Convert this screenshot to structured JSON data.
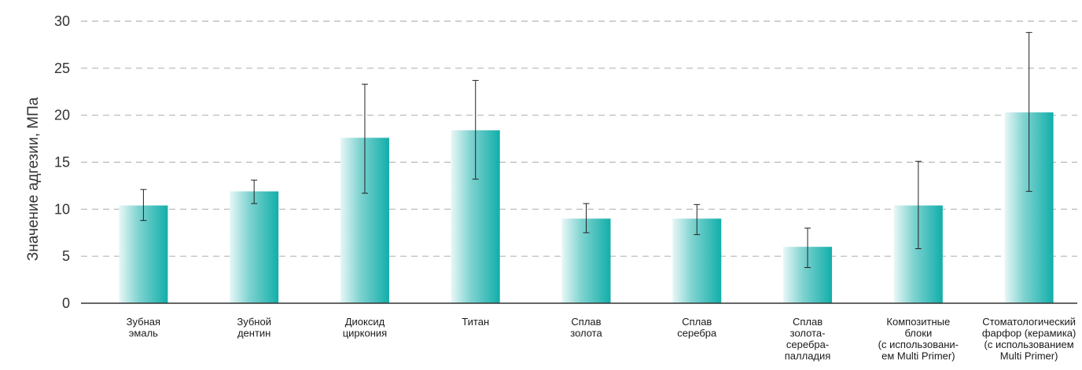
{
  "chart_data": {
    "type": "bar",
    "ylabel": "Значение адгезии, МПа",
    "ylim": [
      0,
      30
    ],
    "yticks": [
      0,
      5,
      10,
      15,
      20,
      25,
      30
    ],
    "grid": true,
    "categories": [
      [
        "Зубная",
        "эмаль"
      ],
      [
        "Зубной",
        "дентин"
      ],
      [
        "Диоксид",
        "циркония"
      ],
      [
        "Титан"
      ],
      [
        "Сплав",
        "золота"
      ],
      [
        "Сплав",
        "серебра"
      ],
      [
        "Сплав",
        "золота-",
        "серебра-",
        "палладия"
      ],
      [
        "Композитные",
        "блоки",
        "(с использовани-",
        "ем Multi Primer)"
      ],
      [
        "Стоматологический",
        "фарфор (керамика)",
        "(с использованием",
        "Multi Primer)"
      ]
    ],
    "values": [
      10.4,
      11.9,
      17.6,
      18.4,
      9.0,
      9.0,
      6.0,
      10.4,
      20.3
    ],
    "error_low": [
      8.8,
      10.6,
      11.7,
      13.2,
      7.5,
      7.3,
      3.8,
      5.8,
      11.9
    ],
    "error_high": [
      12.1,
      13.1,
      23.3,
      23.7,
      10.6,
      10.5,
      8.0,
      15.1,
      28.8
    ],
    "colors": {
      "bar_light": "#e8f7f7",
      "bar_mid": "#7fd3d0",
      "bar_dark": "#12aeaa",
      "grid": "#b5b5b5",
      "axis": "#333333"
    }
  }
}
